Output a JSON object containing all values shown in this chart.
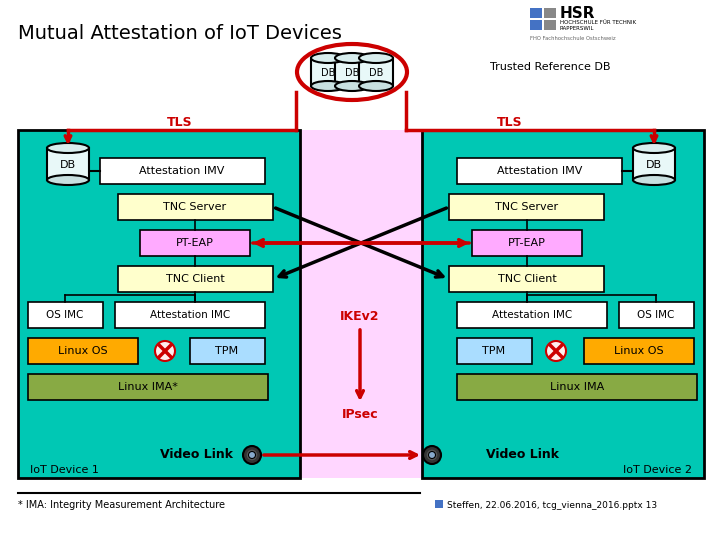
{
  "title": "Mutual Attestation of IoT Devices",
  "bg_color": "#ffffff",
  "device_fill": "#00c8b4",
  "device_stroke": "#000000",
  "imv_fill": "#ffffff",
  "imv_stroke": "#000000",
  "tnc_server_fill": "#ffffcc",
  "pt_eap_fill": "#ffaaff",
  "tnc_client_fill": "#ffffcc",
  "imc_fill": "#ffffff",
  "linux_os_fill": "#ffaa00",
  "tpm_fill": "#aaddff",
  "linux_ima_fill": "#88aa44",
  "red": "#cc0000",
  "black": "#000000",
  "pink_mid": "#ffccff",
  "db_body": "#e8f8f8",
  "db_top": "#d0eef0",
  "footnote": "* IMA: Integrity Measurement Architecture",
  "citation": "Steffen, 22.06.2016, tcg_vienna_2016.pptx 13"
}
